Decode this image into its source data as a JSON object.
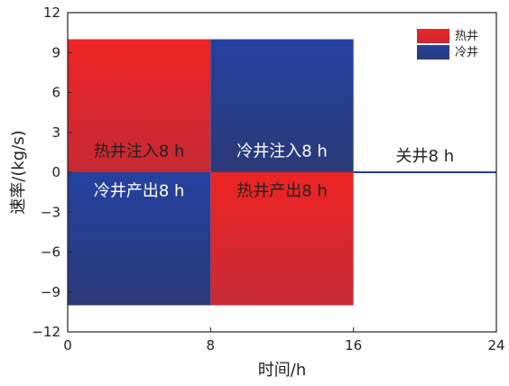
{
  "chart_data": {
    "type": "bar",
    "xlabel": "时间/h",
    "ylabel": "速率/(kg/s)",
    "xlim": [
      0,
      24
    ],
    "ylim": [
      -12,
      12
    ],
    "xticks": [
      "0",
      "8",
      "16",
      "24"
    ],
    "yticks": [
      "12",
      "9",
      "6",
      "3",
      "0",
      "−3",
      "−6",
      "−9",
      "−12"
    ],
    "grid": false,
    "legend_position": "top-right",
    "series": [
      {
        "name": "热井",
        "color": "#e8262a",
        "segments": [
          {
            "x_start": 0,
            "x_end": 8,
            "value": 10
          },
          {
            "x_start": 8,
            "x_end": 16,
            "value": -10
          }
        ]
      },
      {
        "name": "冷井",
        "color": "#25418f",
        "segments": [
          {
            "x_start": 0,
            "x_end": 8,
            "value": -10
          },
          {
            "x_start": 8,
            "x_end": 16,
            "value": 10
          }
        ]
      }
    ],
    "zero_line": {
      "x_start": 16,
      "x_end": 24,
      "value": 0
    },
    "annotations": [
      {
        "text": "热井注入8 h",
        "x": 4,
        "y": 1.2,
        "color": "#222222"
      },
      {
        "text": "冷井产出8 h",
        "x": 4,
        "y": -1.8,
        "color": "#ffffff"
      },
      {
        "text": "冷井注入8 h",
        "x": 12,
        "y": 1.2,
        "color": "#ffffff"
      },
      {
        "text": "热井产出8 h",
        "x": 12,
        "y": -1.8,
        "color": "#222222"
      },
      {
        "text": "关井8 h",
        "x": 20,
        "y": 0.8,
        "color": "#222222"
      }
    ]
  }
}
